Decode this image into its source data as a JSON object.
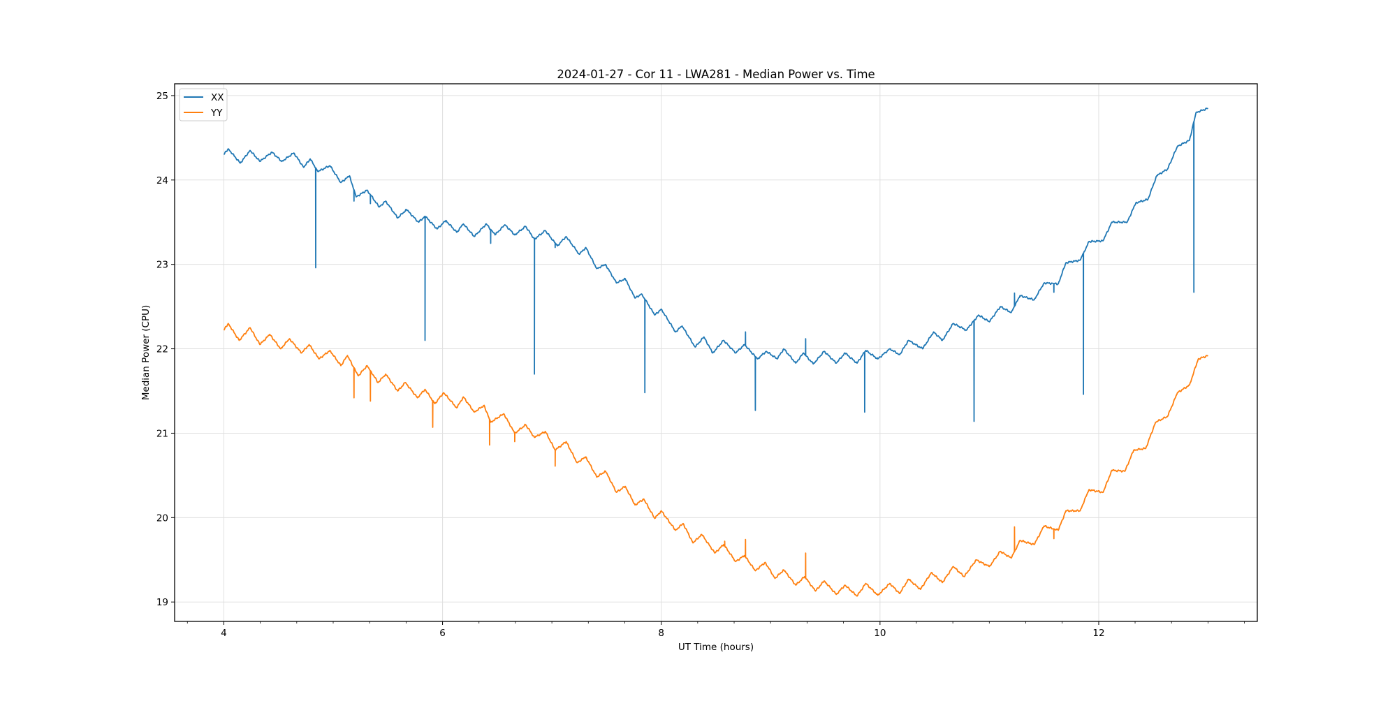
{
  "chart_data": {
    "type": "line",
    "title": "2024-01-27 - Cor 11 - LWA281 - Median Power vs. Time",
    "xlabel": "UT Time (hours)",
    "ylabel": "Median Power (CPU)",
    "xlim": [
      3.55,
      13.45
    ],
    "ylim": [
      18.77,
      25.14
    ],
    "xticks": [
      4,
      6,
      8,
      10,
      12
    ],
    "xtick_labels": [
      "4",
      "6",
      "8",
      "10",
      "12"
    ],
    "x_minor_step": 0.3333,
    "yticks": [
      19,
      20,
      21,
      22,
      23,
      24,
      25
    ],
    "ytick_labels": [
      "19",
      "20",
      "21",
      "22",
      "23",
      "24",
      "25"
    ],
    "grid": true,
    "legend": {
      "placement": "top-left",
      "entries": [
        "XX",
        "YY"
      ]
    },
    "series": [
      {
        "name": "XX",
        "color": "#1f77b4",
        "x": [
          4.0,
          4.04,
          4.15,
          4.24,
          4.33,
          4.44,
          4.53,
          4.64,
          4.73,
          4.79,
          4.86,
          4.97,
          5.07,
          5.15,
          5.21,
          5.31,
          5.42,
          5.48,
          5.59,
          5.67,
          5.78,
          5.84,
          5.95,
          6.03,
          6.13,
          6.19,
          6.29,
          6.4,
          6.48,
          6.57,
          6.66,
          6.76,
          6.84,
          6.94,
          7.05,
          7.13,
          7.25,
          7.31,
          7.41,
          7.49,
          7.59,
          7.67,
          7.76,
          7.82,
          7.94,
          8.0,
          8.13,
          8.19,
          8.31,
          8.39,
          8.47,
          8.57,
          8.68,
          8.76,
          8.88,
          8.96,
          9.06,
          9.12,
          9.23,
          9.3,
          9.39,
          9.49,
          9.6,
          9.68,
          9.79,
          9.87,
          9.98,
          10.09,
          10.18,
          10.26,
          10.39,
          10.49,
          10.57,
          10.67,
          10.79,
          10.9,
          11.0,
          11.1,
          11.2,
          11.28,
          11.41,
          11.5,
          11.63,
          11.7,
          11.83,
          11.91,
          12.04,
          12.12,
          12.26,
          12.34,
          12.45,
          12.53,
          12.63,
          12.72,
          12.83,
          12.89,
          13.0
        ],
        "y": [
          24.3,
          24.37,
          24.2,
          24.35,
          24.22,
          24.33,
          24.22,
          24.32,
          24.15,
          24.25,
          24.1,
          24.17,
          23.97,
          24.05,
          23.8,
          23.88,
          23.68,
          23.75,
          23.55,
          23.65,
          23.5,
          23.57,
          23.42,
          23.52,
          23.38,
          23.48,
          23.33,
          23.48,
          23.35,
          23.47,
          23.35,
          23.45,
          23.3,
          23.4,
          23.22,
          23.33,
          23.12,
          23.2,
          22.95,
          23.0,
          22.78,
          22.83,
          22.6,
          22.65,
          22.4,
          22.47,
          22.2,
          22.27,
          22.02,
          22.14,
          21.95,
          22.1,
          21.95,
          22.05,
          21.88,
          21.97,
          21.88,
          22.0,
          21.83,
          21.95,
          21.82,
          21.97,
          21.83,
          21.95,
          21.83,
          21.98,
          21.88,
          22.0,
          21.93,
          22.1,
          22.0,
          22.2,
          22.1,
          22.3,
          22.22,
          22.4,
          22.32,
          22.5,
          22.43,
          22.63,
          22.58,
          22.78,
          22.77,
          23.02,
          23.05,
          23.27,
          23.28,
          23.5,
          23.5,
          23.73,
          23.77,
          24.05,
          24.13,
          24.4,
          24.47,
          24.8,
          24.85
        ],
        "spikes": [
          {
            "x": 4.84,
            "y": 22.96
          },
          {
            "x": 5.19,
            "y": 23.75
          },
          {
            "x": 5.34,
            "y": 23.72
          },
          {
            "x": 5.84,
            "y": 22.1
          },
          {
            "x": 6.44,
            "y": 23.25
          },
          {
            "x": 6.84,
            "y": 21.7
          },
          {
            "x": 7.03,
            "y": 23.2
          },
          {
            "x": 7.85,
            "y": 21.48
          },
          {
            "x": 8.77,
            "y": 22.2
          },
          {
            "x": 8.86,
            "y": 21.27
          },
          {
            "x": 9.32,
            "y": 22.12
          },
          {
            "x": 9.86,
            "y": 21.25
          },
          {
            "x": 10.86,
            "y": 21.14
          },
          {
            "x": 11.23,
            "y": 22.66
          },
          {
            "x": 11.59,
            "y": 22.67
          },
          {
            "x": 11.86,
            "y": 21.46
          },
          {
            "x": 12.87,
            "y": 22.67
          }
        ]
      },
      {
        "name": "YY",
        "color": "#ff7f0e",
        "x": [
          4.0,
          4.04,
          4.14,
          4.24,
          4.33,
          4.42,
          4.52,
          4.6,
          4.71,
          4.78,
          4.87,
          4.97,
          5.07,
          5.13,
          5.23,
          5.31,
          5.41,
          5.48,
          5.59,
          5.66,
          5.77,
          5.84,
          5.93,
          6.01,
          6.13,
          6.19,
          6.29,
          6.38,
          6.44,
          6.56,
          6.66,
          6.76,
          6.84,
          6.94,
          7.03,
          7.13,
          7.23,
          7.31,
          7.41,
          7.49,
          7.59,
          7.67,
          7.76,
          7.84,
          7.94,
          8.0,
          8.13,
          8.2,
          8.29,
          8.37,
          8.49,
          8.57,
          8.68,
          8.76,
          8.86,
          8.95,
          9.04,
          9.12,
          9.23,
          9.31,
          9.41,
          9.49,
          9.6,
          9.68,
          9.79,
          9.87,
          9.98,
          10.09,
          10.18,
          10.26,
          10.37,
          10.47,
          10.57,
          10.67,
          10.77,
          10.88,
          11.0,
          11.1,
          11.2,
          11.28,
          11.41,
          11.5,
          11.63,
          11.7,
          11.83,
          11.91,
          12.04,
          12.12,
          12.24,
          12.32,
          12.43,
          12.52,
          12.63,
          12.72,
          12.83,
          12.91,
          13.0
        ],
        "y": [
          22.22,
          22.3,
          22.1,
          22.25,
          22.05,
          22.17,
          22.0,
          22.12,
          21.95,
          22.05,
          21.88,
          21.98,
          21.8,
          21.92,
          21.68,
          21.8,
          21.6,
          21.7,
          21.5,
          21.6,
          21.42,
          21.52,
          21.35,
          21.48,
          21.3,
          21.43,
          21.25,
          21.33,
          21.13,
          21.23,
          21.0,
          21.1,
          20.95,
          21.02,
          20.8,
          20.9,
          20.65,
          20.72,
          20.48,
          20.55,
          20.3,
          20.37,
          20.15,
          20.22,
          19.99,
          20.08,
          19.85,
          19.93,
          19.7,
          19.8,
          19.58,
          19.68,
          19.48,
          19.55,
          19.37,
          19.47,
          19.28,
          19.38,
          19.2,
          19.3,
          19.13,
          19.25,
          19.09,
          19.2,
          19.07,
          19.22,
          19.08,
          19.22,
          19.1,
          19.27,
          19.15,
          19.35,
          19.23,
          19.42,
          19.3,
          19.5,
          19.42,
          19.6,
          19.52,
          19.73,
          19.68,
          19.9,
          19.85,
          20.08,
          20.08,
          20.33,
          20.3,
          20.56,
          20.55,
          20.8,
          20.82,
          21.13,
          21.2,
          21.48,
          21.57,
          21.88,
          21.92
        ],
        "spikes": [
          {
            "x": 5.19,
            "y": 21.42
          },
          {
            "x": 5.34,
            "y": 21.38
          },
          {
            "x": 5.91,
            "y": 21.07
          },
          {
            "x": 6.43,
            "y": 20.86
          },
          {
            "x": 6.66,
            "y": 20.9
          },
          {
            "x": 7.03,
            "y": 20.61
          },
          {
            "x": 8.58,
            "y": 19.72
          },
          {
            "x": 8.77,
            "y": 19.74
          },
          {
            "x": 9.32,
            "y": 19.58
          },
          {
            "x": 11.23,
            "y": 19.89
          },
          {
            "x": 11.59,
            "y": 19.75
          }
        ]
      }
    ]
  }
}
